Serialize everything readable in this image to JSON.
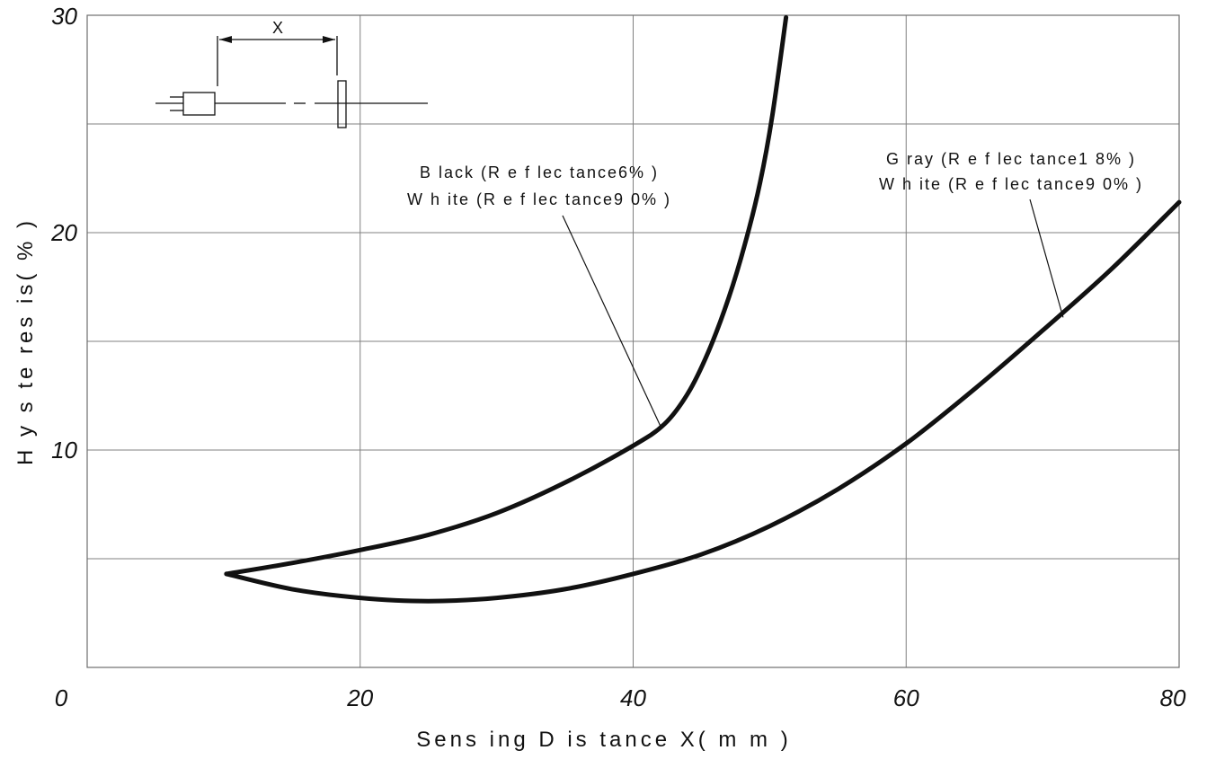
{
  "chart_data": {
    "type": "line",
    "title": "",
    "xlabel": "Sens ing  D is tance  X( m m )",
    "ylabel": "H y s te res  is( % )",
    "xlim": [
      0,
      80
    ],
    "ylim": [
      0,
      30
    ],
    "x_ticks": [
      0,
      20,
      40,
      60,
      80
    ],
    "x_tick_labels": [
      "0",
      "20",
      "40",
      "60",
      "80"
    ],
    "y_ticks": [
      10,
      20,
      30
    ],
    "y_tick_labels": [
      "10",
      "20",
      "30"
    ],
    "grid": true,
    "legend": "none",
    "series": [
      {
        "x": [
          10.2,
          15,
          20,
          25,
          30,
          35,
          40,
          42.3,
          44,
          45.5,
          47,
          48.2,
          49.3,
          50.2,
          51.2
        ],
        "y": [
          4.3,
          4.8,
          5.4,
          6.1,
          7.1,
          8.5,
          10.2,
          11.2,
          12.6,
          14.5,
          17,
          19.5,
          22.3,
          25.4,
          29.9
        ]
      },
      {
        "x": [
          10.2,
          15,
          20,
          25,
          30,
          35,
          40,
          45,
          50,
          55,
          60,
          65,
          70,
          75,
          80
        ],
        "y": [
          4.3,
          3.6,
          3.2,
          3.05,
          3.2,
          3.6,
          4.3,
          5.2,
          6.5,
          8.2,
          10.3,
          12.8,
          15.5,
          18.3,
          21.4
        ]
      }
    ],
    "annotations": [
      {
        "lines": [
          "B lack (R e f lec tance6% )",
          "W h ite (R e f lec tance9 0% )"
        ],
        "points_to_x": 42,
        "points_to_y": 11.1
      },
      {
        "lines": [
          "G ray (R e f lec tance1 8% )",
          "W h ite (R e f lec tance9 0% )"
        ],
        "points_to_x": 71.5,
        "points_to_y": 16.1
      }
    ],
    "inset_label": "X"
  }
}
